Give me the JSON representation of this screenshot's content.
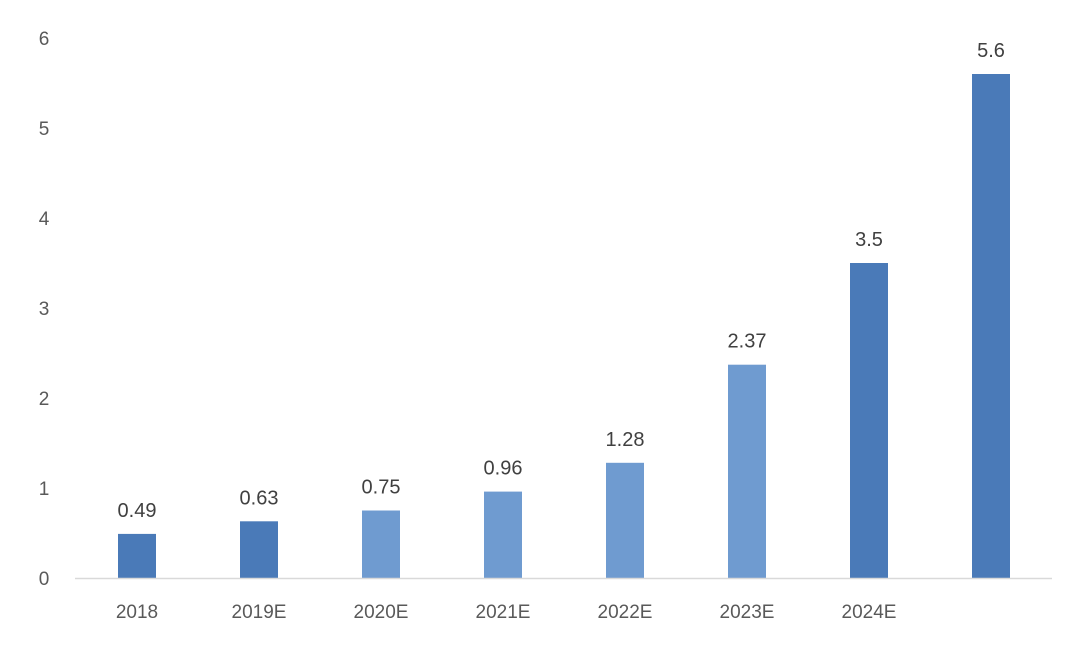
{
  "chart_data": {
    "type": "bar",
    "categories": [
      "2018",
      "2019E",
      "2020E",
      "2021E",
      "2022E",
      "2023E",
      "2024E",
      ""
    ],
    "values": [
      0.49,
      0.63,
      0.75,
      0.96,
      1.28,
      2.37,
      3.5,
      5.6
    ],
    "data_labels": [
      "0.49",
      "0.63",
      "0.75",
      "0.96",
      "1.28",
      "2.37",
      "3.5",
      "5.6"
    ],
    "y_ticks": [
      "0",
      "1",
      "2",
      "3",
      "4",
      "5",
      "6"
    ],
    "ylim": [
      0,
      6
    ],
    "title": "",
    "xlabel": "",
    "ylabel": "",
    "grid": false,
    "legend": "none",
    "colors": {
      "bar_dark": "#4a7ab8",
      "bar_light": "#6f9bd0"
    },
    "bar_tones": [
      "dark",
      "dark",
      "light",
      "light",
      "light",
      "light",
      "dark",
      "dark"
    ]
  }
}
